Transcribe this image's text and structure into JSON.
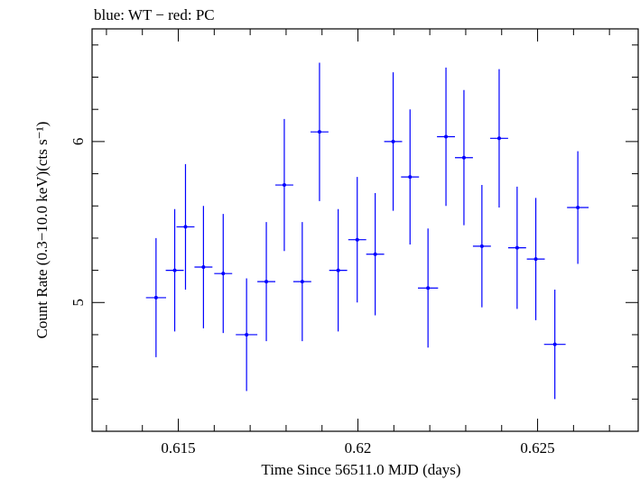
{
  "chart_data": {
    "type": "scatter",
    "title": "blue: WT − red: PC",
    "xlabel": "Time Since 56511.0 MJD (days)",
    "ylabel": "Count Rate (0.3−10.0 keV)(cts s⁻¹)",
    "xlim": [
      0.6126,
      0.6278
    ],
    "ylim": [
      4.2,
      6.7
    ],
    "x_ticks": [
      0.615,
      0.62,
      0.625
    ],
    "x_tick_labels": [
      "0.615",
      "0.62",
      "0.625"
    ],
    "y_ticks": [
      5,
      6
    ],
    "y_tick_labels": [
      "5",
      "6"
    ],
    "grid": false,
    "series": [
      {
        "color": "#0000ff",
        "points": [
          {
            "x": 0.61438,
            "y": 5.03,
            "xerr": 0.00028,
            "yerr": 0.37
          },
          {
            "x": 0.6149,
            "y": 5.2,
            "xerr": 0.00025,
            "yerr": 0.38
          },
          {
            "x": 0.6152,
            "y": 5.47,
            "xerr": 0.00025,
            "yerr": 0.39
          },
          {
            "x": 0.6157,
            "y": 5.22,
            "xerr": 0.00025,
            "yerr": 0.38
          },
          {
            "x": 0.61625,
            "y": 5.18,
            "xerr": 0.00025,
            "yerr": 0.37
          },
          {
            "x": 0.6169,
            "y": 4.8,
            "xerr": 0.0003,
            "yerr": 0.35
          },
          {
            "x": 0.61745,
            "y": 5.13,
            "xerr": 0.00025,
            "yerr": 0.37
          },
          {
            "x": 0.61795,
            "y": 5.73,
            "xerr": 0.00025,
            "yerr": 0.41
          },
          {
            "x": 0.61845,
            "y": 5.13,
            "xerr": 0.00025,
            "yerr": 0.37
          },
          {
            "x": 0.61893,
            "y": 6.06,
            "xerr": 0.00025,
            "yerr": 0.43
          },
          {
            "x": 0.61945,
            "y": 5.2,
            "xerr": 0.00025,
            "yerr": 0.38
          },
          {
            "x": 0.61998,
            "y": 5.39,
            "xerr": 0.00025,
            "yerr": 0.39
          },
          {
            "x": 0.62048,
            "y": 5.3,
            "xerr": 0.00025,
            "yerr": 0.38
          },
          {
            "x": 0.62098,
            "y": 6.0,
            "xerr": 0.00025,
            "yerr": 0.43
          },
          {
            "x": 0.62145,
            "y": 5.78,
            "xerr": 0.00025,
            "yerr": 0.42
          },
          {
            "x": 0.62195,
            "y": 5.09,
            "xerr": 0.00028,
            "yerr": 0.37
          },
          {
            "x": 0.62245,
            "y": 6.03,
            "xerr": 0.00025,
            "yerr": 0.43
          },
          {
            "x": 0.62295,
            "y": 5.9,
            "xerr": 0.00025,
            "yerr": 0.42
          },
          {
            "x": 0.62345,
            "y": 5.35,
            "xerr": 0.00025,
            "yerr": 0.38
          },
          {
            "x": 0.62393,
            "y": 6.02,
            "xerr": 0.00025,
            "yerr": 0.43
          },
          {
            "x": 0.62443,
            "y": 5.34,
            "xerr": 0.00025,
            "yerr": 0.38
          },
          {
            "x": 0.62495,
            "y": 5.27,
            "xerr": 0.00025,
            "yerr": 0.38
          },
          {
            "x": 0.62548,
            "y": 4.74,
            "xerr": 0.0003,
            "yerr": 0.34
          },
          {
            "x": 0.62612,
            "y": 5.59,
            "xerr": 0.0003,
            "yerr": 0.35
          }
        ]
      }
    ]
  }
}
